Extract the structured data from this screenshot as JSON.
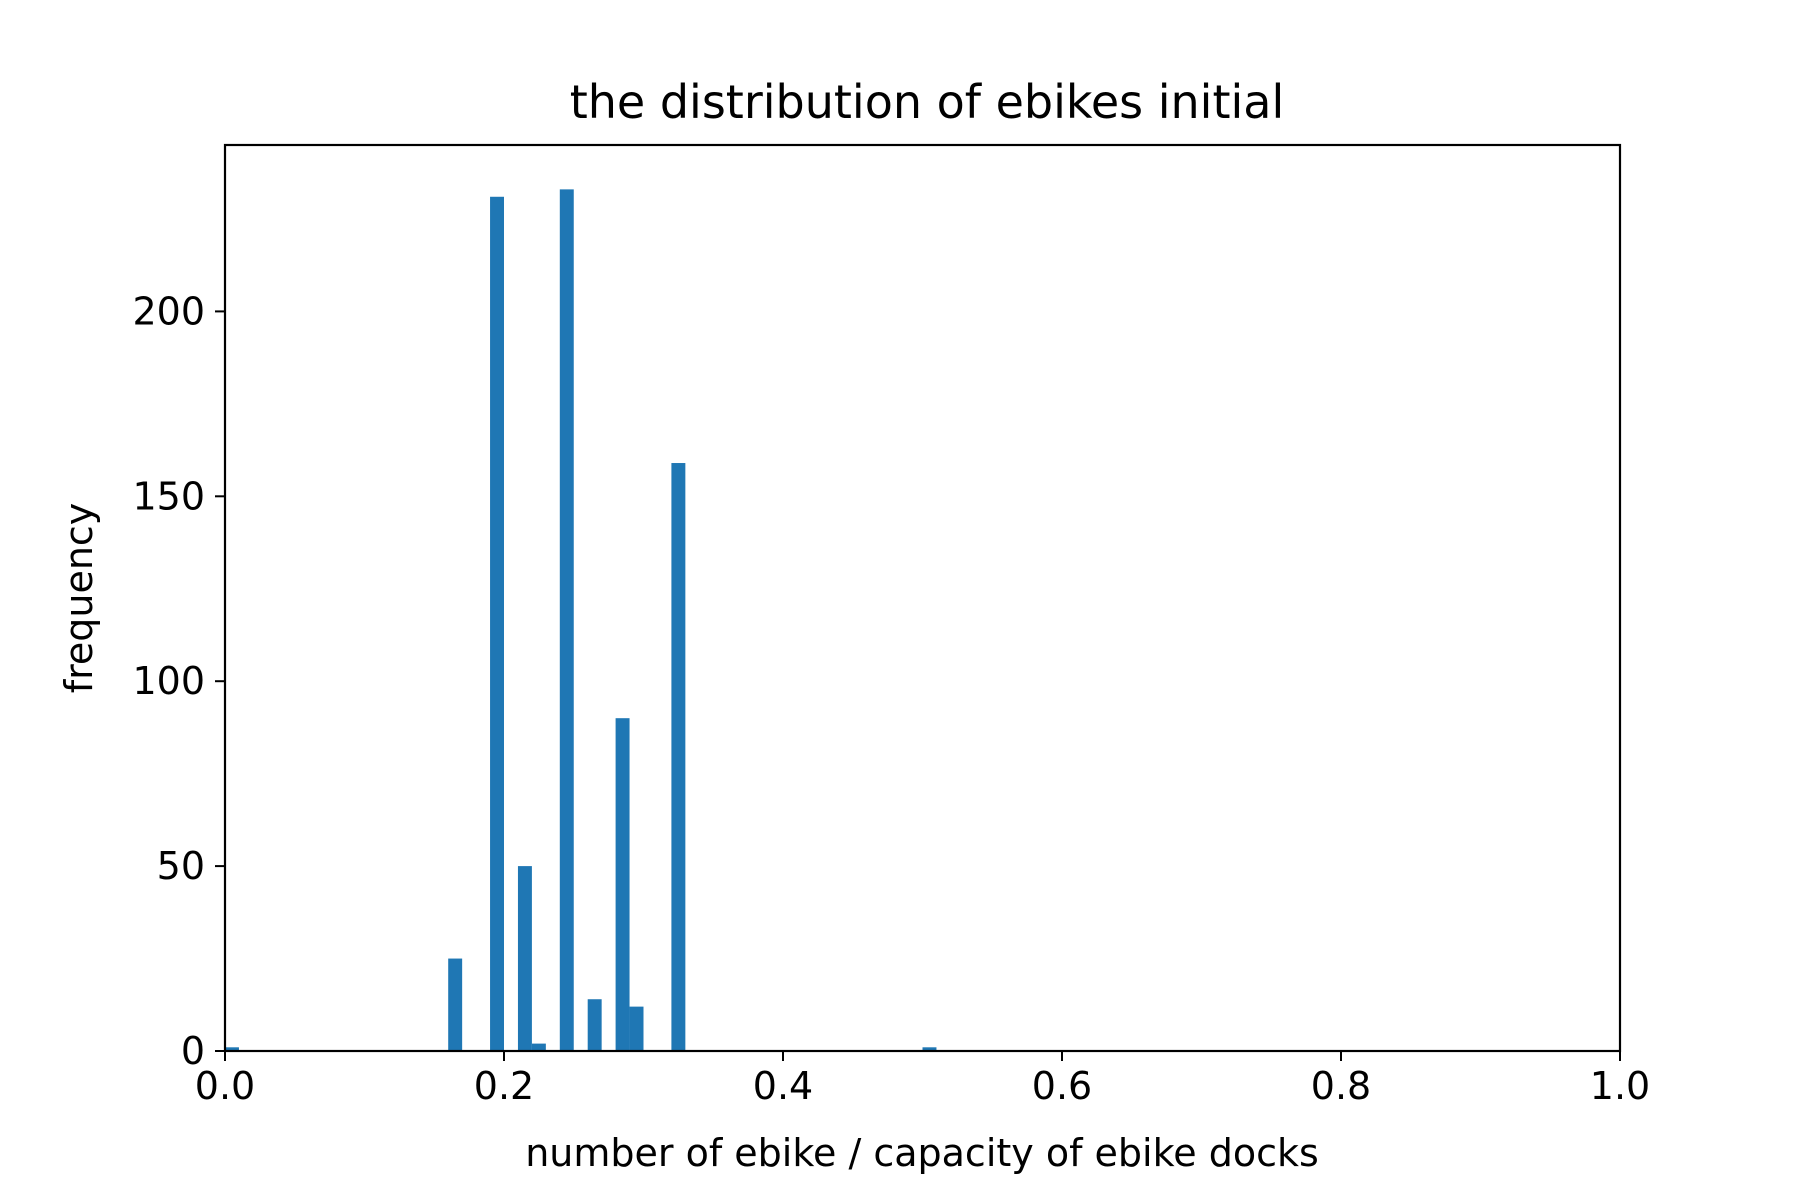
{
  "chart_data": {
    "type": "bar",
    "title": "the distribution of ebikes initial",
    "xlabel": "number of ebike / capacity of ebike docks",
    "ylabel": "frequency",
    "xlim": [
      0.0,
      1.0
    ],
    "ylim": [
      0,
      245
    ],
    "bin_width": 0.01,
    "bar_color": "#1f77b4",
    "grid": false,
    "legend": "none",
    "x_ticks": [
      {
        "value": 0.0,
        "label": "0.0"
      },
      {
        "value": 0.2,
        "label": "0.2"
      },
      {
        "value": 0.4,
        "label": "0.4"
      },
      {
        "value": 0.6,
        "label": "0.6"
      },
      {
        "value": 0.8,
        "label": "0.8"
      },
      {
        "value": 1.0,
        "label": "1.0"
      }
    ],
    "y_ticks": [
      {
        "value": 0,
        "label": "0"
      },
      {
        "value": 50,
        "label": "50"
      },
      {
        "value": 100,
        "label": "100"
      },
      {
        "value": 150,
        "label": "150"
      },
      {
        "value": 200,
        "label": "200"
      }
    ],
    "bins": [
      {
        "x": 0.0,
        "value": 1
      },
      {
        "x": 0.16,
        "value": 25
      },
      {
        "x": 0.19,
        "value": 231
      },
      {
        "x": 0.21,
        "value": 50
      },
      {
        "x": 0.22,
        "value": 2
      },
      {
        "x": 0.24,
        "value": 233
      },
      {
        "x": 0.26,
        "value": 14
      },
      {
        "x": 0.28,
        "value": 90
      },
      {
        "x": 0.29,
        "value": 12
      },
      {
        "x": 0.32,
        "value": 159
      },
      {
        "x": 0.5,
        "value": 1
      }
    ]
  }
}
